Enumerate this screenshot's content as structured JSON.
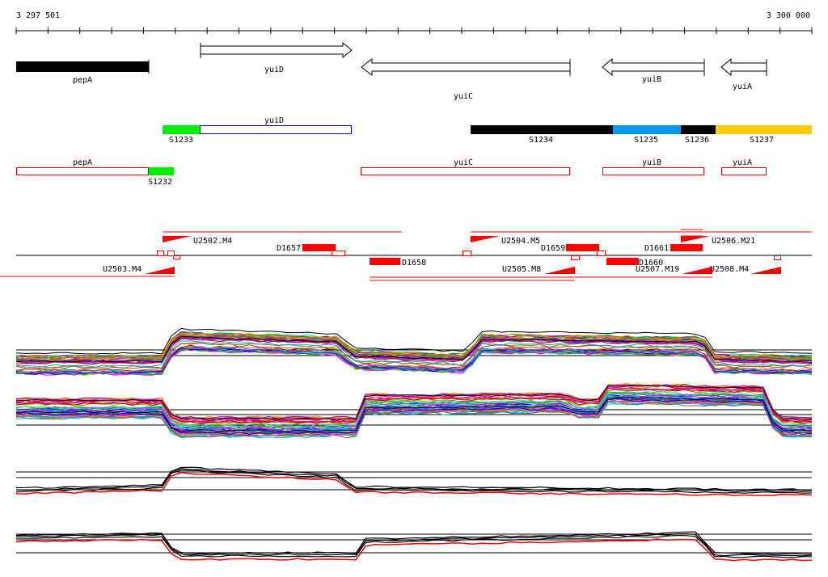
{
  "ruler": {
    "start_label": "3 297 501",
    "end_label": "3 300 000"
  },
  "genes": [
    {
      "name": "pepA",
      "strand": "solid"
    },
    {
      "name": "yuiD",
      "strand": "forward"
    },
    {
      "name": "yuiC",
      "strand": "reverse"
    },
    {
      "name": "yuiB",
      "strand": "reverse"
    },
    {
      "name": "yuiA",
      "strand": "reverse"
    }
  ],
  "segments_row1": {
    "yuiD_label": "yuiD",
    "labels": [
      "S1233",
      "S1234",
      "S1235",
      "S1236",
      "S1237"
    ]
  },
  "segments_row2": {
    "labels": [
      "pepA",
      "yuiC",
      "yuiB",
      "yuiA",
      "S1232"
    ]
  },
  "features": {
    "upper": [
      "U2502.M4",
      "D1657",
      "U2504.M5",
      "D1659",
      "D1661",
      "U2506.M21"
    ],
    "lower": [
      "U2503.M4",
      "D1658",
      "U2505.M8",
      "D1660",
      "U2507.M19",
      "U2508.M4"
    ]
  },
  "colors": {
    "black": "#000000",
    "green": "#00ee00",
    "blue": "#0099ee",
    "orange": "#ffcc00",
    "red": "#ff0000",
    "outline_red": "#dd0000",
    "outline_blue": "#0000cc"
  },
  "expression_panels": 4
}
